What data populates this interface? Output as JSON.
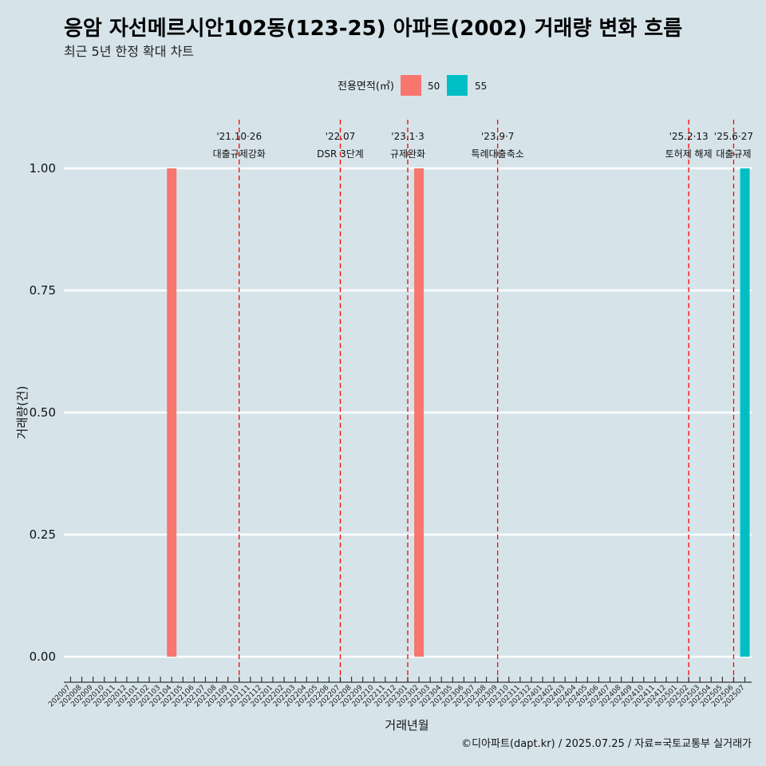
{
  "title": "응암 자선메르시안102동(123-25) 아파트(2002) 거래량 변화 흐름",
  "subtitle": "최근 5년 한정 확대 차트",
  "caption": "©디아파트(dapt.kr) / 2025.07.25 / 자료=국토교통부 실거래가",
  "chart_data": {
    "type": "bar",
    "xlabel": "거래년월",
    "ylabel": "거래량(건)",
    "ylim": [
      0,
      1
    ],
    "yticks": [
      "0.00",
      "0.25",
      "0.50",
      "0.75",
      "1.00"
    ],
    "grid": true,
    "legend": {
      "title": "전용면적(㎡)",
      "position": "top"
    },
    "categories": [
      "202007",
      "202008",
      "202009",
      "202010",
      "202011",
      "202012",
      "202101",
      "202102",
      "202103",
      "202104",
      "202105",
      "202106",
      "202107",
      "202108",
      "202109",
      "202110",
      "202111",
      "202112",
      "202201",
      "202202",
      "202203",
      "202204",
      "202205",
      "202206",
      "202207",
      "202208",
      "202209",
      "202210",
      "202211",
      "202212",
      "202301",
      "202302",
      "202303",
      "202304",
      "202305",
      "202306",
      "202307",
      "202308",
      "202309",
      "202310",
      "202311",
      "202312",
      "202401",
      "202402",
      "202403",
      "202404",
      "202405",
      "202406",
      "202407",
      "202408",
      "202409",
      "202410",
      "202411",
      "202412",
      "202501",
      "202502",
      "202503",
      "202504",
      "202505",
      "202506",
      "202507"
    ],
    "series": [
      {
        "name": "50",
        "color": "#f8766d",
        "points": [
          {
            "x": "202104",
            "y": 1
          },
          {
            "x": "202302",
            "y": 1
          }
        ]
      },
      {
        "name": "55",
        "color": "#00bfc4",
        "points": [
          {
            "x": "202507",
            "y": 1
          }
        ]
      }
    ],
    "annotations": [
      {
        "x": "202110",
        "date": "'21.10·26",
        "label": "대출규제강화"
      },
      {
        "x": "202207",
        "date": "'22.07",
        "label": "DSR 3단계"
      },
      {
        "x": "202301",
        "date": "'23.1·3",
        "label": "규제완화"
      },
      {
        "x": "202309",
        "date": "'23.9·7",
        "label": "특례대출축소"
      },
      {
        "x": "202502",
        "date": "'25.2·13",
        "label": "토허제 해제"
      },
      {
        "x": "202506",
        "date": "'25.6·27",
        "label": "대출규제"
      }
    ]
  }
}
